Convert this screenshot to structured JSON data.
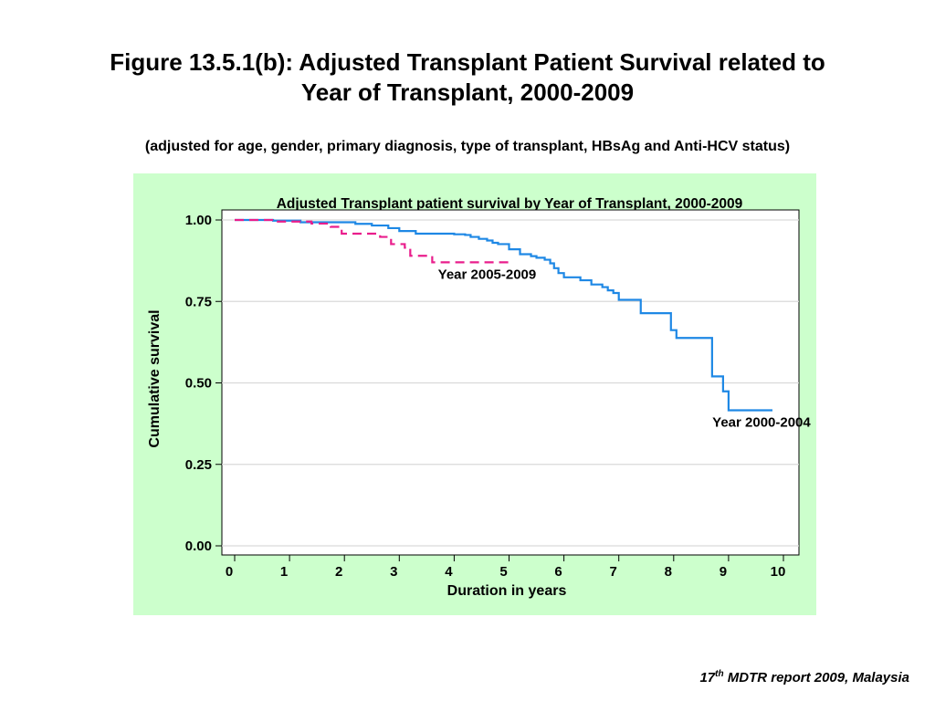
{
  "figure": {
    "title_line1": "Figure 13.5.1(b): Adjusted Transplant Patient Survival related to",
    "title_line2": "Year of Transplant, 2000-2009",
    "subtitle": "(adjusted for age, gender, primary diagnosis, type of transplant, HBsAg and Anti-HCV status)"
  },
  "source": {
    "prefix": "17",
    "sup": "th",
    "suffix": " MDTR report 2009, Malaysia"
  },
  "colors": {
    "panel_bg": "#ccffcc",
    "plot_bg": "#ffffff",
    "gridline": "#d9d9d9",
    "series_2000_2004": "#1e88e5",
    "series_2005_2009": "#e91e8c"
  },
  "chart_data": {
    "type": "line",
    "title": "Adjusted Transplant patient survival by Year of Transplant, 2000-2009",
    "xlabel": "Duration in years",
    "ylabel": "Cumulative survival",
    "xlim": [
      0,
      10
    ],
    "ylim": [
      0,
      1
    ],
    "x_ticks": [
      "0",
      "1",
      "2",
      "3",
      "4",
      "5",
      "6",
      "7",
      "8",
      "9",
      "10"
    ],
    "y_ticks": [
      "0.00",
      "0.25",
      "0.50",
      "0.75",
      "1.00"
    ],
    "grid": true,
    "step": true,
    "series": [
      {
        "name": "Year 2000-2004",
        "style": "solid",
        "points": [
          [
            0,
            1.0
          ],
          [
            0.7,
            0.998
          ],
          [
            1.2,
            0.993
          ],
          [
            2.2,
            0.988
          ],
          [
            2.5,
            0.983
          ],
          [
            2.8,
            0.975
          ],
          [
            3.0,
            0.966
          ],
          [
            3.3,
            0.958
          ],
          [
            4.0,
            0.956
          ],
          [
            4.2,
            0.954
          ],
          [
            4.3,
            0.948
          ],
          [
            4.45,
            0.942
          ],
          [
            4.6,
            0.937
          ],
          [
            4.7,
            0.93
          ],
          [
            4.8,
            0.926
          ],
          [
            5.0,
            0.91
          ],
          [
            5.2,
            0.895
          ],
          [
            5.4,
            0.889
          ],
          [
            5.5,
            0.884
          ],
          [
            5.65,
            0.878
          ],
          [
            5.75,
            0.867
          ],
          [
            5.82,
            0.852
          ],
          [
            5.9,
            0.837
          ],
          [
            6.0,
            0.824
          ],
          [
            6.3,
            0.815
          ],
          [
            6.5,
            0.802
          ],
          [
            6.7,
            0.794
          ],
          [
            6.8,
            0.784
          ],
          [
            6.9,
            0.776
          ],
          [
            7.0,
            0.755
          ],
          [
            7.4,
            0.714
          ],
          [
            7.95,
            0.662
          ],
          [
            8.05,
            0.638
          ],
          [
            8.7,
            0.52
          ],
          [
            8.9,
            0.474
          ],
          [
            9.0,
            0.416
          ],
          [
            9.8,
            0.416
          ]
        ]
      },
      {
        "name": "Year 2005-2009",
        "style": "dashed",
        "points": [
          [
            0,
            1.0
          ],
          [
            0.75,
            0.995
          ],
          [
            1.4,
            0.989
          ],
          [
            1.75,
            0.979
          ],
          [
            1.95,
            0.958
          ],
          [
            2.45,
            0.958
          ],
          [
            2.65,
            0.948
          ],
          [
            2.85,
            0.926
          ],
          [
            3.1,
            0.915
          ],
          [
            3.2,
            0.89
          ],
          [
            3.6,
            0.87
          ],
          [
            5.0,
            0.87
          ]
        ]
      }
    ],
    "annotations": [
      {
        "text": "Year 2005-2009",
        "x": 4.6,
        "y": 0.82,
        "series": "Year 2005-2009"
      },
      {
        "text": "Year 2000-2004",
        "x": 9.6,
        "y": 0.365,
        "series": "Year 2000-2004"
      }
    ]
  }
}
